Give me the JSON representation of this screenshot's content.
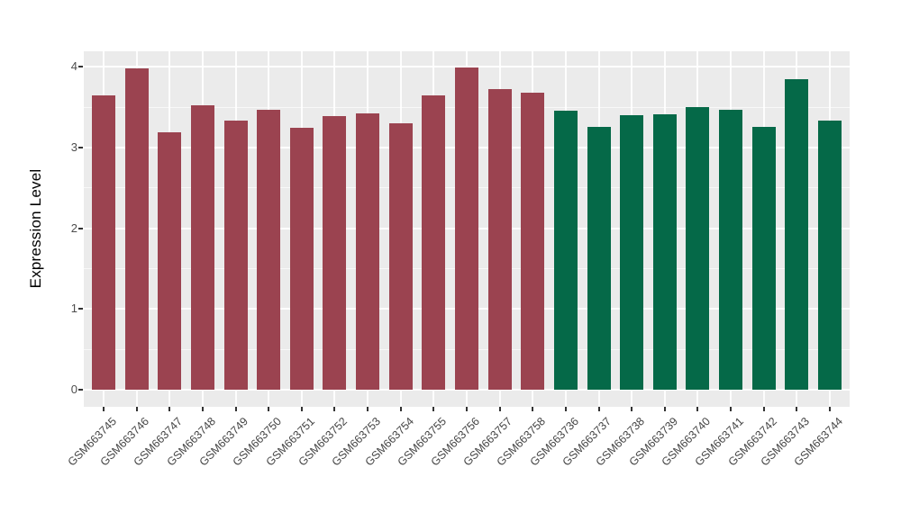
{
  "figure": {
    "background_color": "#FFFFFF",
    "panel_background_color": "#EBEBEB",
    "gridline_color": "#FFFFFF",
    "axis_text_color": "#4D4D4D",
    "tick_mark_color": "#333333"
  },
  "chart_data": {
    "type": "bar",
    "title": "",
    "xlabel": "",
    "ylabel": "Expression Level",
    "ylim": [
      -0.2,
      4.2
    ],
    "yticks": [
      0,
      1,
      2,
      3,
      4
    ],
    "grid": "white major gridlines at integers, minor at halves, vertical majors at each category",
    "legend_position": "none",
    "x_tick_angle_deg": 45,
    "categories": [
      "GSM663745",
      "GSM663746",
      "GSM663747",
      "GSM663748",
      "GSM663749",
      "GSM663750",
      "GSM663751",
      "GSM663752",
      "GSM663753",
      "GSM663754",
      "GSM663755",
      "GSM663756",
      "GSM663757",
      "GSM663758",
      "GSM663736",
      "GSM663737",
      "GSM663738",
      "GSM663739",
      "GSM663740",
      "GSM663741",
      "GSM663742",
      "GSM663743",
      "GSM663744"
    ],
    "values": [
      3.64,
      3.98,
      3.19,
      3.52,
      3.33,
      3.47,
      3.24,
      3.39,
      3.42,
      3.3,
      3.64,
      3.99,
      3.72,
      3.68,
      3.46,
      3.25,
      3.4,
      3.41,
      3.5,
      3.47,
      3.26,
      3.85,
      3.33
    ],
    "groups": [
      0,
      0,
      0,
      0,
      0,
      0,
      0,
      0,
      0,
      0,
      0,
      0,
      0,
      0,
      1,
      1,
      1,
      1,
      1,
      1,
      1,
      1,
      1
    ],
    "group_colors": [
      "#9B4350",
      "#056948"
    ]
  }
}
